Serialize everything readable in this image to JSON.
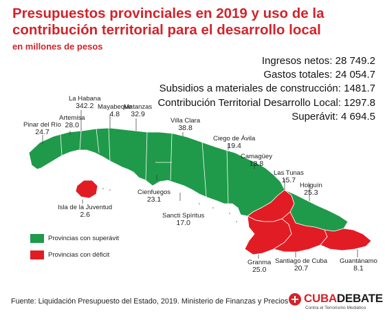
{
  "title": "Presupuestos provinciales en 2019 y uso de la contribución territorial para el desarrollo local",
  "subtitle": "en millones de pesos",
  "stats": [
    "Ingresos netos: 28 749.2",
    "Gastos totales: 24 054.7",
    "Subsidios a materiales de construcción: 1481.7",
    "Contribución Territorial Desarrollo Local: 1297.8",
    "Superávit: 4 694.5"
  ],
  "colors": {
    "surplus": "#1f9a4a",
    "deficit": "#e21c24",
    "accent": "#d2232a"
  },
  "provinces": [
    {
      "id": "pinar-del-rio",
      "name": "Pinar del Río",
      "value": "24.7",
      "status": "surplus"
    },
    {
      "id": "artemisa",
      "name": "Artemisa",
      "value": "28.0",
      "status": "surplus"
    },
    {
      "id": "la-habana",
      "name": "La Habana",
      "value": "342.2",
      "status": "surplus"
    },
    {
      "id": "mayabeque",
      "name": "Mayabeque",
      "value": "4.8",
      "status": "surplus"
    },
    {
      "id": "matanzas",
      "name": "Matanzas",
      "value": "32.9",
      "status": "surplus"
    },
    {
      "id": "villa-clara",
      "name": "Villa Clara",
      "value": "38.8",
      "status": "surplus"
    },
    {
      "id": "cienfuegos",
      "name": "Cienfuegos",
      "value": "23.1",
      "status": "surplus"
    },
    {
      "id": "sancti-spiritus",
      "name": "Sancti Spíritus",
      "value": "17.0",
      "status": "surplus"
    },
    {
      "id": "ciego-de-avila",
      "name": "Ciego de Ávila",
      "value": "19.4",
      "status": "surplus"
    },
    {
      "id": "camaguey",
      "name": "Camagüey",
      "value": "13.8",
      "status": "surplus"
    },
    {
      "id": "las-tunas",
      "name": "Las Tunas",
      "value": "15.7",
      "status": "deficit"
    },
    {
      "id": "holguin",
      "name": "Holguín",
      "value": "25.3",
      "status": "surplus"
    },
    {
      "id": "granma",
      "name": "Granma",
      "value": "25.0",
      "status": "deficit"
    },
    {
      "id": "santiago-de-cuba",
      "name": "Santiago de Cuba",
      "value": "20.7",
      "status": "deficit"
    },
    {
      "id": "guantanamo",
      "name": "Guantánamo",
      "value": "8.1",
      "status": "deficit"
    },
    {
      "id": "isla-de-la-juventud",
      "name": "Isla de la Juventud",
      "value": "2.6",
      "status": "deficit"
    }
  ],
  "legend": {
    "surplus": "Provincias con superávit",
    "deficit": "Provincias con déficit"
  },
  "source": "Fuente: Liquidación Presupuesto del Estado, 2019. Ministerio de Finanzas y Precios",
  "logo": {
    "part1": "CUBA",
    "part2": "DEBATE",
    "tagline": "Contra el Terrorismo Mediático"
  }
}
